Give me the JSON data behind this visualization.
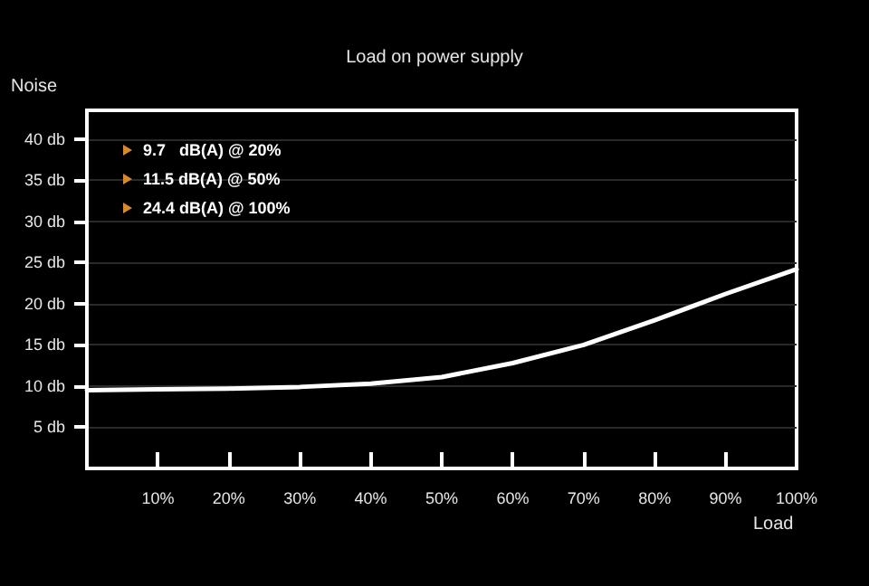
{
  "chart_data": {
    "type": "line",
    "title": "Load on power supply",
    "xlabel": "Load",
    "ylabel": "Noise",
    "x": [
      0,
      10,
      20,
      30,
      40,
      50,
      60,
      70,
      80,
      90,
      100
    ],
    "series": [
      {
        "color": "#ffffff",
        "values": [
          9.5,
          9.6,
          9.7,
          9.9,
          10.3,
          11.1,
          12.8,
          15,
          18,
          21.2,
          24.2
        ]
      }
    ],
    "xlim": [
      0,
      100
    ],
    "xticks": [
      {
        "value": 10,
        "label": "10%"
      },
      {
        "value": 20,
        "label": "20%"
      },
      {
        "value": 30,
        "label": "30%"
      },
      {
        "value": 40,
        "label": "40%"
      },
      {
        "value": 50,
        "label": "50%"
      },
      {
        "value": 60,
        "label": "60%"
      },
      {
        "value": 70,
        "label": "70%"
      },
      {
        "value": 80,
        "label": "80%"
      },
      {
        "value": 90,
        "label": "90%"
      },
      {
        "value": 100,
        "label": "100%"
      }
    ],
    "ylim": [
      0,
      43.5
    ],
    "yticks": [
      {
        "value": 5,
        "label": "5 db"
      },
      {
        "value": 10,
        "label": "10 db"
      },
      {
        "value": 15,
        "label": "15 db"
      },
      {
        "value": 20,
        "label": "20 db"
      },
      {
        "value": 25,
        "label": "25 db"
      },
      {
        "value": 30,
        "label": "30 db"
      },
      {
        "value": 35,
        "label": "35 db"
      },
      {
        "value": 40,
        "label": "40 db"
      }
    ],
    "annotations": [
      "9.7   dB(A) @ 20%",
      "11.5 dB(A) @ 50%",
      "24.4 dB(A) @ 100%"
    ],
    "grid": "y",
    "marker": "none",
    "line_style": "solid"
  }
}
